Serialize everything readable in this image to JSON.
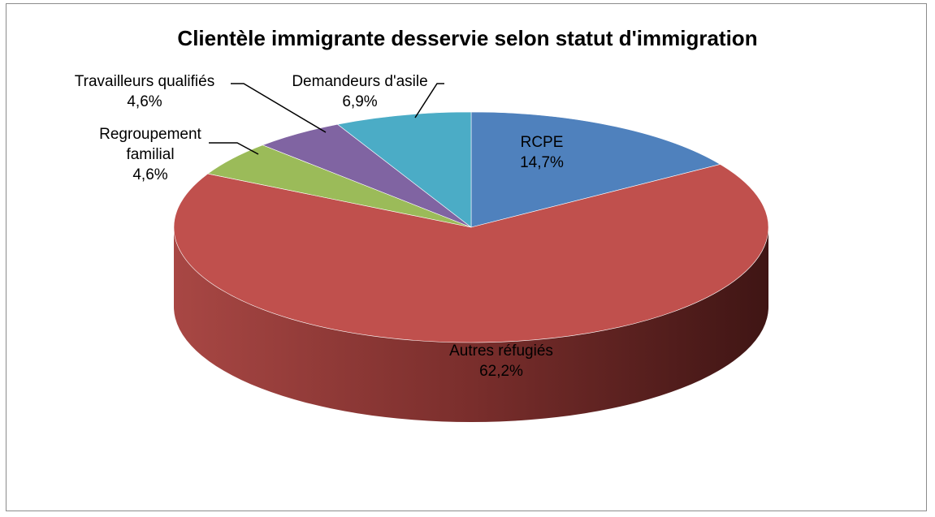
{
  "chart_data": {
    "type": "pie",
    "title": "Clientèle immigrante desservie selon statut d'immigration",
    "slices": [
      {
        "name": "RCPE",
        "value": 14.7,
        "pct_label": "14,7%",
        "color": "#4f81bd"
      },
      {
        "name": "Autres réfugiés",
        "value": 62.2,
        "pct_label": "62,2%",
        "color": "#c0504d"
      },
      {
        "name": "Regroupement familial",
        "label_lines": [
          "Regroupement",
          "familial"
        ],
        "value": 4.6,
        "pct_label": "4,6%",
        "color": "#9bbb59"
      },
      {
        "name": "Travailleurs qualifiés",
        "value": 4.6,
        "pct_label": "4,6%",
        "color": "#8064a2"
      },
      {
        "name": "Demandeurs d'asile",
        "value": 6.9,
        "pct_label": "6,9%",
        "color": "#4bacc6"
      }
    ]
  }
}
